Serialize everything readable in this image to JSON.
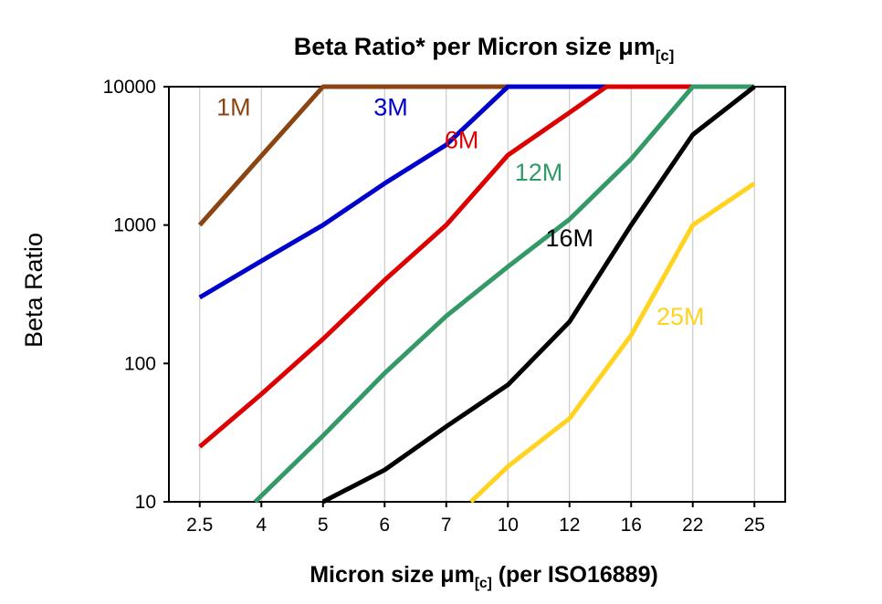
{
  "title": {
    "before_mu": "Beta Ratio* per Micron size ",
    "mu": "μm",
    "subscript": "[c]"
  },
  "y_axis": {
    "label": "Beta Ratio"
  },
  "x_axis": {
    "before_mu": "Micron size ",
    "mu": "μm",
    "subscript": "[c]",
    "after": " (per ISO16889)"
  },
  "chart_data": {
    "type": "line",
    "title": "Beta Ratio* per Micron size μm[c]",
    "xlabel": "Micron size μm[c] (per ISO16889)",
    "ylabel": "Beta Ratio",
    "x_categories": [
      "2.5",
      "4",
      "5",
      "6",
      "7",
      "10",
      "12",
      "16",
      "22",
      "25"
    ],
    "y_scale": "log10",
    "ylim": [
      10,
      10000
    ],
    "y_ticks": [
      10,
      100,
      1000,
      10000
    ],
    "grid": "vertical",
    "legend_position": "inline-labels",
    "series": [
      {
        "name": "1M",
        "color": "#8B4513",
        "points": [
          [
            0,
            1000
          ],
          [
            2,
            10000
          ],
          [
            5,
            10000
          ]
        ],
        "label": {
          "xi": 0.55,
          "v": 6200
        }
      },
      {
        "name": "3M",
        "color": "#0000CC",
        "points": [
          [
            0,
            300
          ],
          [
            1,
            550
          ],
          [
            2,
            1000
          ],
          [
            3,
            2000
          ],
          [
            4,
            3800
          ],
          [
            5,
            10000
          ],
          [
            7,
            10000
          ]
        ],
        "label": {
          "xi": 3.1,
          "v": 6200
        }
      },
      {
        "name": "6M",
        "color": "#DD0000",
        "points": [
          [
            0,
            25
          ],
          [
            1,
            60
          ],
          [
            2,
            150
          ],
          [
            3,
            400
          ],
          [
            4,
            1000
          ],
          [
            5,
            3200
          ],
          [
            6,
            6500
          ],
          [
            6.6,
            10000
          ],
          [
            8,
            10000
          ]
        ],
        "label": {
          "xi": 4.25,
          "v": 3600
        }
      },
      {
        "name": "12M",
        "color": "#339966",
        "points": [
          [
            0.9,
            10
          ],
          [
            2,
            30
          ],
          [
            3,
            85
          ],
          [
            4,
            220
          ],
          [
            5,
            500
          ],
          [
            6,
            1100
          ],
          [
            7,
            3000
          ],
          [
            8,
            10000
          ],
          [
            9,
            10000
          ]
        ],
        "label": {
          "xi": 5.5,
          "v": 2100
        }
      },
      {
        "name": "16M",
        "color": "#000000",
        "points": [
          [
            2,
            10
          ],
          [
            3,
            17
          ],
          [
            4,
            35
          ],
          [
            5,
            70
          ],
          [
            6,
            200
          ],
          [
            7,
            1000
          ],
          [
            8,
            4500
          ],
          [
            9,
            10000
          ]
        ],
        "label": {
          "xi": 6.0,
          "v": 700
        }
      },
      {
        "name": "25M",
        "color": "#FFD320",
        "points": [
          [
            4.4,
            10
          ],
          [
            5,
            18
          ],
          [
            6,
            40
          ],
          [
            7,
            160
          ],
          [
            8,
            1000
          ],
          [
            9,
            2000
          ]
        ],
        "label": {
          "xi": 7.8,
          "v": 190
        }
      }
    ]
  }
}
